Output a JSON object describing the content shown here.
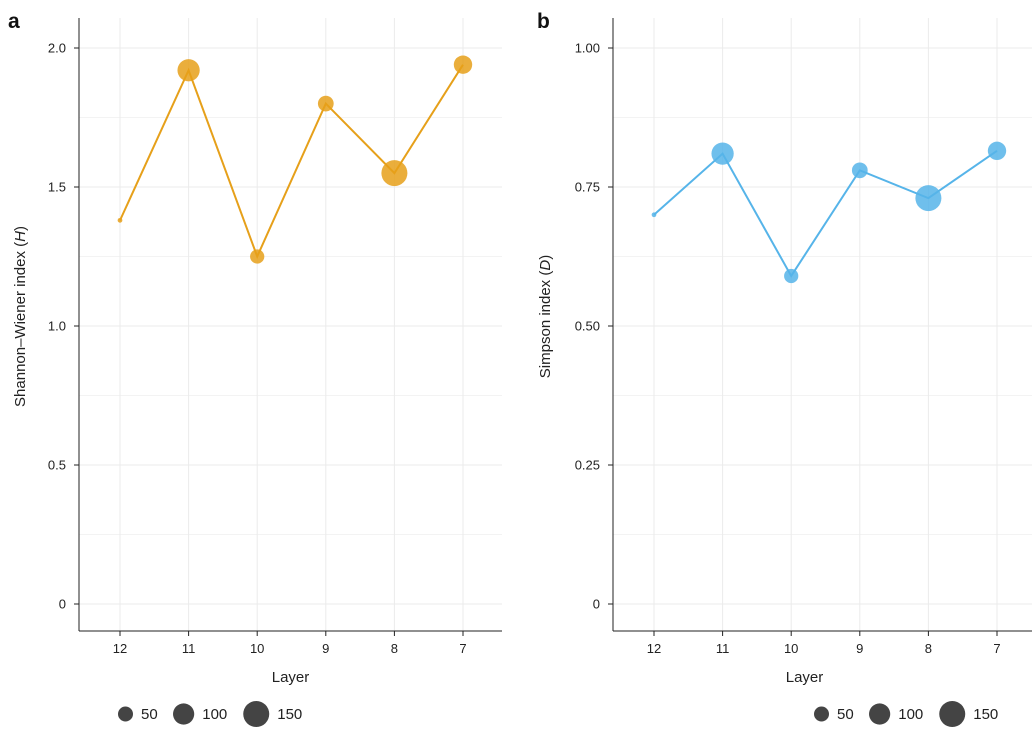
{
  "chart_data": [
    {
      "type": "scatter",
      "panel_label": "a",
      "xlabel": "Layer",
      "ylabel": "Shannon–Wiener index (H)",
      "ylabel_main": "Shannon–Wiener index (",
      "ylabel_var": "H",
      "ylabel_end": ")",
      "x_categories": [
        "12",
        "11",
        "10",
        "9",
        "8",
        "7"
      ],
      "ylim": [
        0,
        2.0
      ],
      "y_ticks": [
        0,
        0.5,
        1.0,
        1.5,
        2.0
      ],
      "y_tick_labels": [
        "0",
        "0.5",
        "1.0",
        "1.5",
        "2.0"
      ],
      "grid": true,
      "color": "#E6A01A",
      "series": [
        {
          "values": [
            1.38,
            1.92,
            1.25,
            1.8,
            1.55,
            1.94
          ],
          "sizes": [
            5,
            110,
            45,
            55,
            150,
            75
          ]
        }
      ],
      "legend": {
        "title": "",
        "placement": "bottom",
        "sizes": [
          50,
          100,
          150
        ],
        "labels": [
          "50",
          "100",
          "150"
        ]
      }
    },
    {
      "type": "scatter",
      "panel_label": "b",
      "xlabel": "Layer",
      "ylabel": "Simpson index (D)",
      "ylabel_main": "Simpson index (",
      "ylabel_var": "D",
      "ylabel_end": ")",
      "x_categories": [
        "12",
        "11",
        "10",
        "9",
        "8",
        "7"
      ],
      "ylim": [
        0,
        1.0
      ],
      "y_ticks": [
        0,
        0.25,
        0.5,
        0.75,
        1.0
      ],
      "y_tick_labels": [
        "0",
        "0.25",
        "0.50",
        "0.75",
        "1.00"
      ],
      "grid": true,
      "color": "#56B4E9",
      "series": [
        {
          "values": [
            0.7,
            0.81,
            0.59,
            0.78,
            0.73,
            0.815
          ],
          "sizes": [
            5,
            110,
            45,
            55,
            150,
            75
          ]
        }
      ],
      "legend": {
        "title": "",
        "placement": "bottom",
        "sizes": [
          50,
          100,
          150
        ],
        "labels": [
          "50",
          "100",
          "150"
        ]
      }
    }
  ]
}
